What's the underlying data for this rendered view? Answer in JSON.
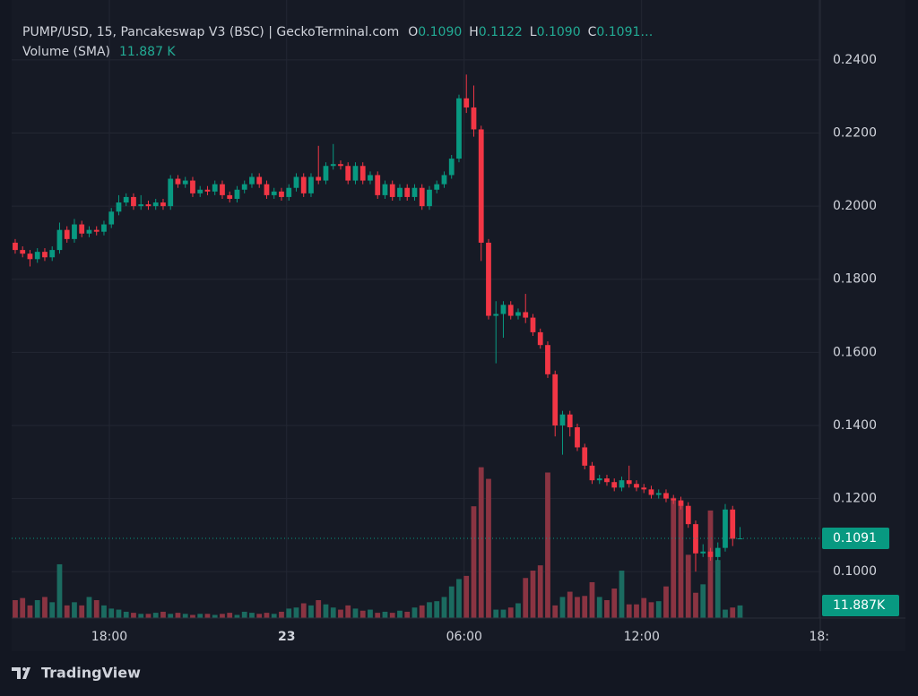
{
  "chart_data": {
    "type": "candlestick",
    "title": "PUMP/USD, 15, Pancakeswap V3 (BSC) | GeckoTerminal.com",
    "ohlc_legend": [
      {
        "key": "O",
        "value": "0.1090"
      },
      {
        "key": "H",
        "value": "0.1122"
      },
      {
        "key": "L",
        "value": "0.1090"
      },
      {
        "key": "C",
        "value": "0.1091…"
      }
    ],
    "volume_legend": {
      "name": "Volume (SMA)",
      "value": "11.887 K"
    },
    "price_label": "0.1091",
    "volume_label": "11.887K",
    "brand": "TradingView",
    "up_color": "#089981",
    "down_color": "#f23645",
    "volume_up_color": "#1b6b60",
    "volume_down_color": "#8a3442",
    "open": [
      0.19,
      0.188,
      0.187,
      0.1855,
      0.1875,
      0.186,
      0.188,
      0.1935,
      0.191,
      0.195,
      0.1925,
      0.1935,
      0.193,
      0.195,
      0.1985,
      0.201,
      0.2025,
      0.2,
      0.2005,
      0.2,
      0.201,
      0.2,
      0.2075,
      0.206,
      0.207,
      0.2035,
      0.2045,
      0.204,
      0.206,
      0.203,
      0.202,
      0.2045,
      0.206,
      0.208,
      0.206,
      0.203,
      0.204,
      0.2025,
      0.205,
      0.208,
      0.2035,
      0.208,
      0.207,
      0.211,
      0.2115,
      0.211,
      0.207,
      0.211,
      0.207,
      0.2085,
      0.203,
      0.206,
      0.2025,
      0.205,
      0.2025,
      0.205,
      0.2,
      0.2045,
      0.206,
      0.2085,
      0.213,
      0.2295,
      0.227,
      0.221,
      0.19,
      0.17,
      0.1705,
      0.173,
      0.17,
      0.171,
      0.1695,
      0.1655,
      0.162,
      0.154,
      0.14,
      0.143,
      0.1395,
      0.134,
      0.129,
      0.125,
      0.1255,
      0.1245,
      0.123,
      0.125,
      0.124,
      0.123,
      0.1225,
      0.121,
      0.1215,
      0.12,
      0.1195,
      0.118,
      0.113,
      0.105,
      0.1055,
      0.104,
      0.1065,
      0.117,
      0.109
    ],
    "high": [
      0.191,
      0.189,
      0.188,
      0.1885,
      0.1885,
      0.189,
      0.1955,
      0.1945,
      0.1965,
      0.196,
      0.1945,
      0.1945,
      0.196,
      0.1995,
      0.203,
      0.2035,
      0.2035,
      0.203,
      0.2015,
      0.202,
      0.202,
      0.2085,
      0.2085,
      0.208,
      0.208,
      0.2055,
      0.2055,
      0.207,
      0.207,
      0.204,
      0.2055,
      0.207,
      0.209,
      0.209,
      0.207,
      0.205,
      0.205,
      0.206,
      0.209,
      0.209,
      0.209,
      0.2165,
      0.212,
      0.217,
      0.2125,
      0.212,
      0.212,
      0.212,
      0.2095,
      0.2095,
      0.207,
      0.207,
      0.206,
      0.206,
      0.206,
      0.206,
      0.2055,
      0.207,
      0.2095,
      0.214,
      0.2305,
      0.236,
      0.233,
      0.222,
      0.191,
      0.174,
      0.174,
      0.174,
      0.172,
      0.176,
      0.1705,
      0.1665,
      0.163,
      0.155,
      0.144,
      0.144,
      0.1405,
      0.135,
      0.13,
      0.1265,
      0.1265,
      0.1255,
      0.126,
      0.129,
      0.125,
      0.124,
      0.1235,
      0.1225,
      0.1225,
      0.121,
      0.1205,
      0.119,
      0.114,
      0.1075,
      0.1065,
      0.108,
      0.1185,
      0.118,
      0.1122
    ],
    "low": [
      0.187,
      0.186,
      0.1835,
      0.1845,
      0.185,
      0.185,
      0.187,
      0.19,
      0.19,
      0.1915,
      0.1915,
      0.192,
      0.192,
      0.194,
      0.1975,
      0.2,
      0.199,
      0.199,
      0.199,
      0.199,
      0.199,
      0.199,
      0.205,
      0.205,
      0.2025,
      0.2025,
      0.203,
      0.203,
      0.202,
      0.201,
      0.201,
      0.2035,
      0.205,
      0.205,
      0.202,
      0.202,
      0.2015,
      0.2015,
      0.204,
      0.2025,
      0.2025,
      0.206,
      0.206,
      0.21,
      0.21,
      0.206,
      0.206,
      0.206,
      0.206,
      0.202,
      0.202,
      0.2015,
      0.2015,
      0.2015,
      0.2015,
      0.199,
      0.199,
      0.2035,
      0.205,
      0.2075,
      0.212,
      0.2255,
      0.219,
      0.185,
      0.169,
      0.157,
      0.164,
      0.169,
      0.169,
      0.168,
      0.1645,
      0.161,
      0.153,
      0.137,
      0.132,
      0.137,
      0.133,
      0.128,
      0.124,
      0.124,
      0.1235,
      0.122,
      0.122,
      0.123,
      0.122,
      0.1215,
      0.12,
      0.12,
      0.119,
      0.1185,
      0.117,
      0.112,
      0.1,
      0.104,
      0.103,
      0.103,
      0.1055,
      0.107,
      0.109
    ],
    "close": [
      0.188,
      0.187,
      0.1855,
      0.1875,
      0.186,
      0.188,
      0.1935,
      0.191,
      0.195,
      0.1925,
      0.1935,
      0.193,
      0.195,
      0.1985,
      0.201,
      0.2025,
      0.2,
      0.2005,
      0.2,
      0.201,
      0.2,
      0.2075,
      0.206,
      0.207,
      0.2035,
      0.2045,
      0.204,
      0.206,
      0.203,
      0.202,
      0.2045,
      0.206,
      0.208,
      0.206,
      0.203,
      0.204,
      0.2025,
      0.205,
      0.208,
      0.2035,
      0.208,
      0.207,
      0.211,
      0.2115,
      0.211,
      0.207,
      0.211,
      0.207,
      0.2085,
      0.203,
      0.206,
      0.2025,
      0.205,
      0.2025,
      0.205,
      0.2,
      0.2045,
      0.206,
      0.2085,
      0.213,
      0.2295,
      0.227,
      0.221,
      0.19,
      0.17,
      0.1705,
      0.173,
      0.17,
      0.171,
      0.1695,
      0.1655,
      0.162,
      0.154,
      0.14,
      0.143,
      0.1395,
      0.134,
      0.129,
      0.125,
      0.1255,
      0.1245,
      0.123,
      0.125,
      0.124,
      0.123,
      0.1225,
      0.121,
      0.1215,
      0.12,
      0.1195,
      0.118,
      0.113,
      0.105,
      0.1055,
      0.104,
      0.1065,
      0.117,
      0.109,
      0.1091
    ],
    "volume": [
      17000,
      19000,
      12000,
      17000,
      20000,
      15000,
      51000,
      12000,
      15000,
      12000,
      20000,
      17000,
      12000,
      9000,
      8000,
      6000,
      5000,
      4000,
      4000,
      5000,
      6000,
      4000,
      5000,
      4000,
      3000,
      4000,
      4000,
      3000,
      4000,
      5000,
      3000,
      6000,
      5000,
      4000,
      5000,
      4000,
      6000,
      9000,
      10000,
      14000,
      12000,
      17000,
      13000,
      10000,
      8000,
      12000,
      9000,
      7000,
      8000,
      5000,
      6000,
      5000,
      7000,
      6000,
      10000,
      12000,
      15000,
      16000,
      20000,
      30000,
      37000,
      40000,
      106000,
      143000,
      132000,
      8000,
      8000,
      10000,
      14000,
      38000,
      45000,
      50000,
      138000,
      12000,
      20000,
      25000,
      20000,
      21000,
      34000,
      20000,
      17000,
      28000,
      45000,
      13000,
      13000,
      19000,
      15000,
      16000,
      30000,
      114000,
      110000,
      60000,
      24000,
      32000,
      102000,
      55000,
      8000,
      10000,
      12000
    ],
    "xlim": [
      -0.48,
      108.85
    ],
    "xticks": [
      {
        "value": 12.73,
        "label": "18:00"
      },
      {
        "value": 36.7,
        "label": "23"
      },
      {
        "value": 60.7,
        "label": "06:00"
      },
      {
        "value": 84.7,
        "label": "12:00"
      },
      {
        "value": 108.7,
        "label": "18:"
      }
    ],
    "ylim": [
      0.0873,
      0.2564
    ],
    "yticks": [
      {
        "value": 0.1,
        "label": "0.1000"
      },
      {
        "value": 0.12,
        "label": "0.1200"
      },
      {
        "value": 0.14,
        "label": "0.1400"
      },
      {
        "value": 0.16,
        "label": "0.1600"
      },
      {
        "value": 0.18,
        "label": "0.1800"
      },
      {
        "value": 0.2,
        "label": "0.2000"
      },
      {
        "value": 0.22,
        "label": "0.2200"
      },
      {
        "value": 0.24,
        "label": "0.2400"
      }
    ],
    "y2lim": [
      0,
      586000
    ],
    "grid": true
  }
}
